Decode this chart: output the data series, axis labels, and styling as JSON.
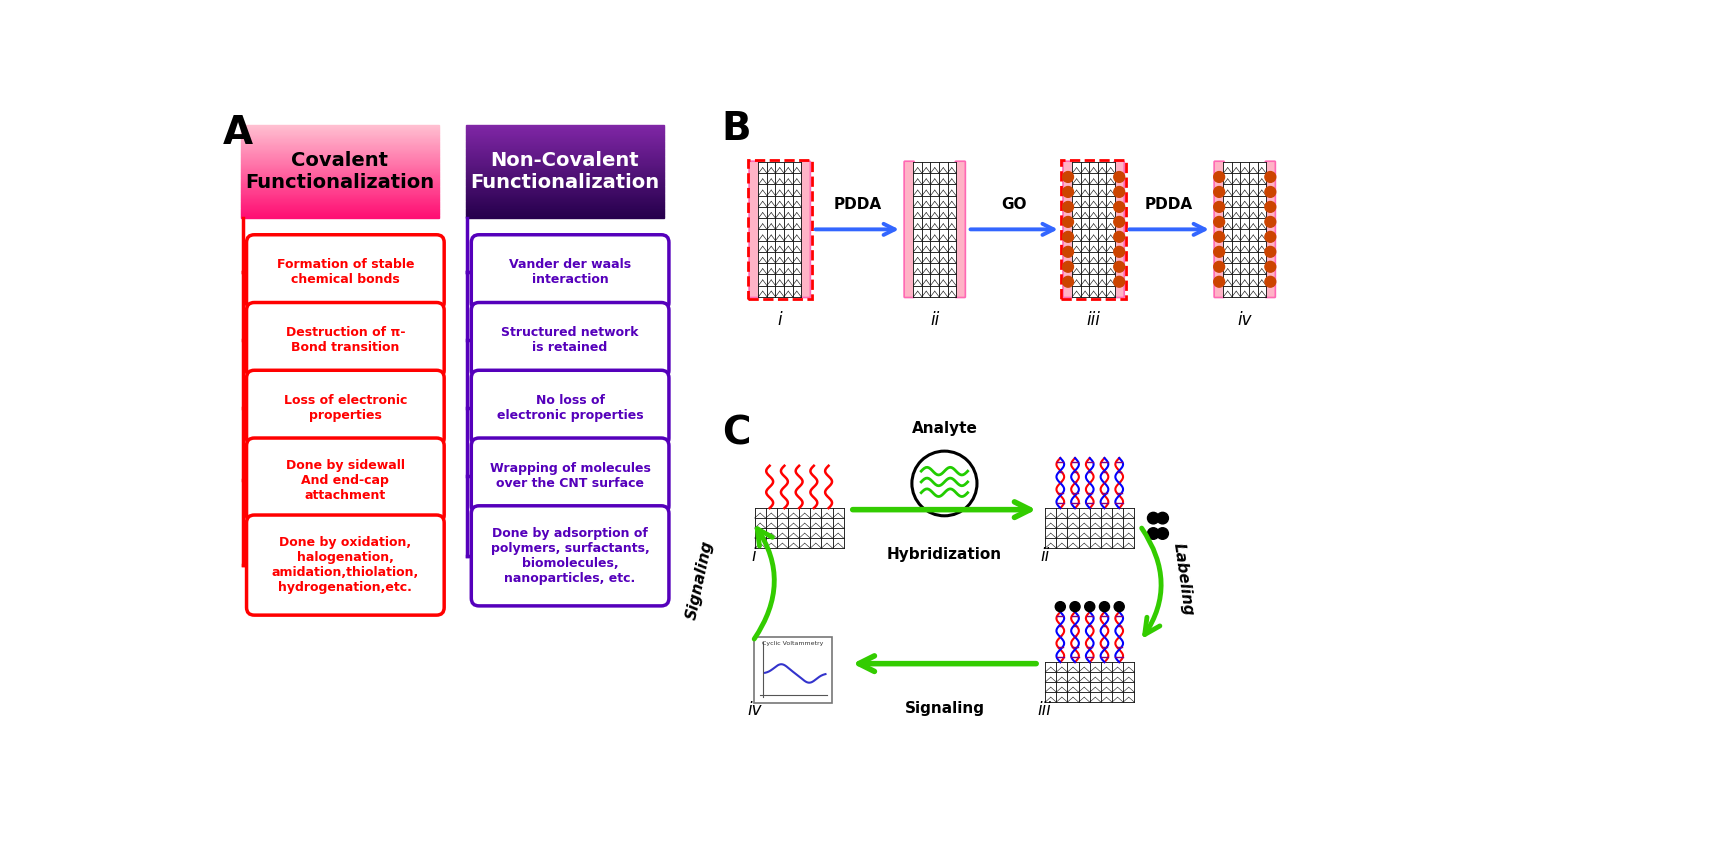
{
  "title_A": "A",
  "title_B": "B",
  "title_C": "C",
  "cov_title": "Covalent\nFunctionalization",
  "ncov_title": "Non-Covalent\nFunctionalization",
  "cov_items": [
    "Formation of stable\nchemical bonds",
    "Destruction of π-\nBond transition",
    "Loss of electronic\nproperties",
    "Done by sidewall\nAnd end-cap\nattachment",
    "Done by oxidation,\nhalogenation,\namidation,thiolation,\nhydrogenation,etc."
  ],
  "ncov_items": [
    "Vander der waals\ninteraction",
    "Structured network\nis retained",
    "No loss of\nelectronic properties",
    "Wrapping of molecules\nover the CNT surface",
    "Done by adsorption of\npolymers, surfactants,\nbiomolecules,\nnanoparticles, etc."
  ],
  "cov_color": "#FF0000",
  "ncov_color": "#5500BB",
  "b_labels": [
    "i",
    "ii",
    "iii",
    "iv"
  ],
  "b_arrows": [
    "PDDA",
    "GO",
    "PDDA"
  ],
  "hybridization_label": "Hybridization",
  "analyte_label": "Analyte",
  "signaling_label1": "Signaling",
  "signaling_label2": "Signaling",
  "labeling_label": "Labeling",
  "bg_color": "#FFFFFF"
}
